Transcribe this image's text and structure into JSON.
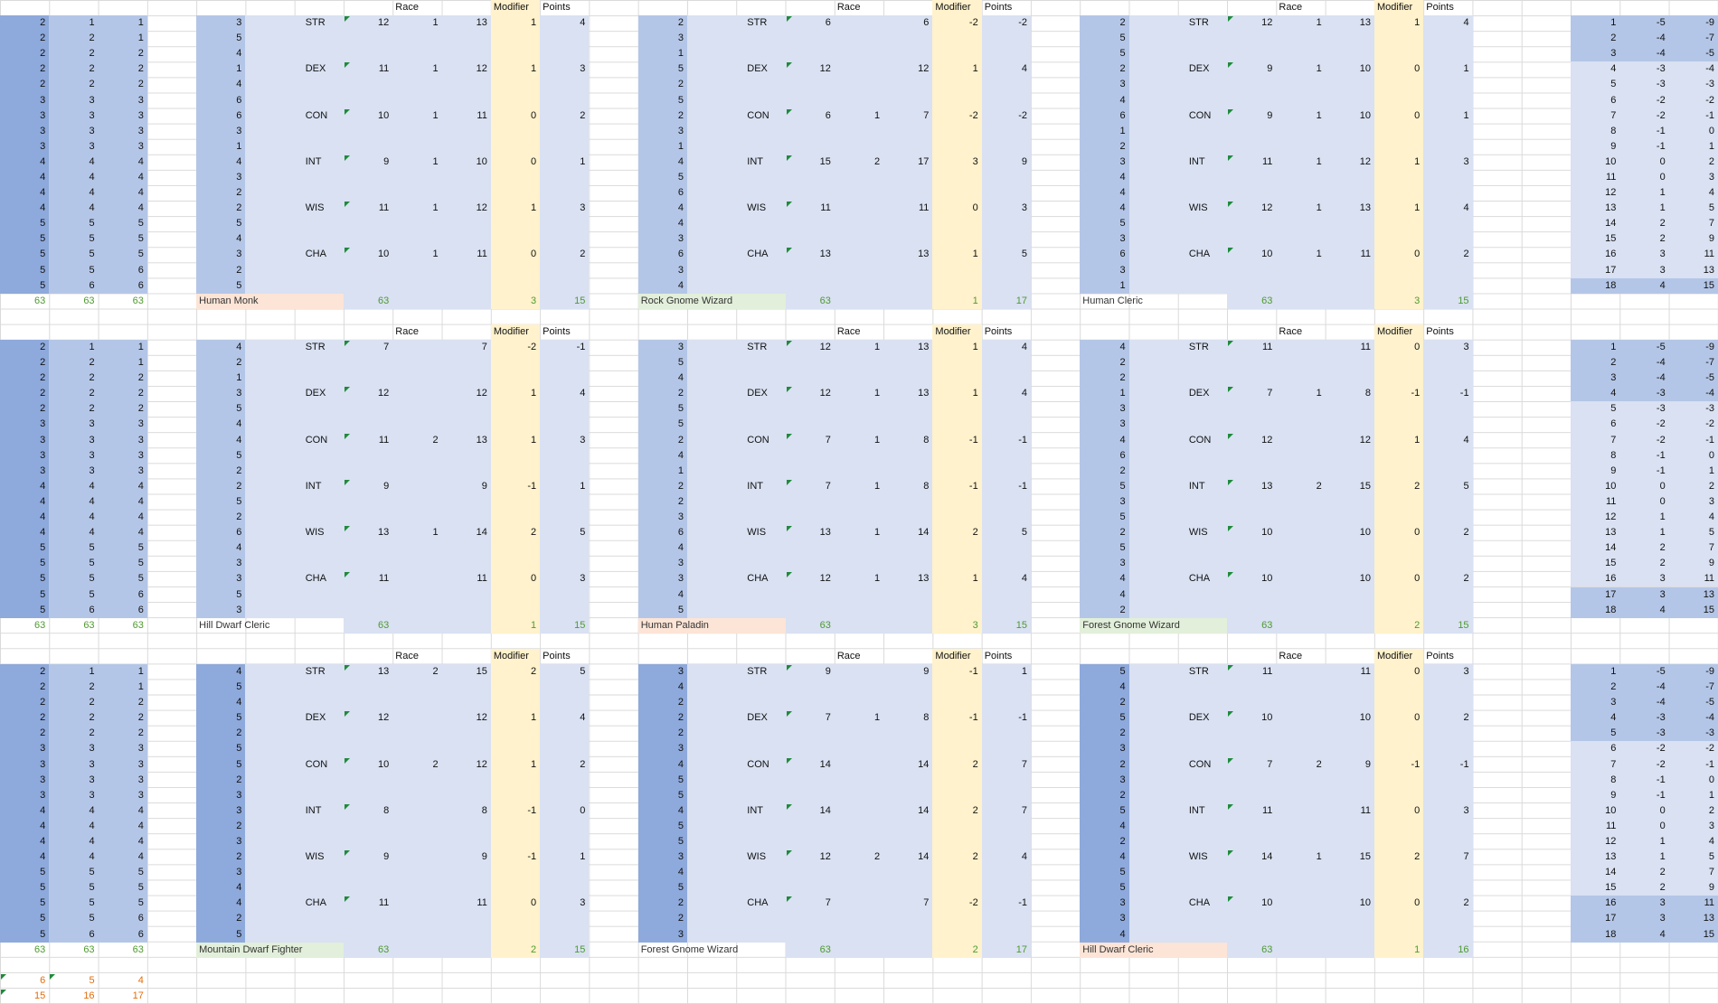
{
  "dice_groups": [
    {
      "columns": [
        [
          2,
          2,
          2,
          2,
          2,
          3,
          3,
          3,
          3,
          4,
          4,
          4,
          4,
          5,
          5,
          5,
          5,
          5
        ],
        [
          1,
          2,
          2,
          2,
          2,
          3,
          3,
          3,
          3,
          4,
          4,
          4,
          4,
          5,
          5,
          5,
          5,
          6
        ],
        [
          1,
          1,
          2,
          2,
          2,
          3,
          3,
          3,
          3,
          4,
          4,
          4,
          4,
          5,
          5,
          5,
          6,
          6
        ]
      ],
      "sums": [
        63,
        63,
        63
      ]
    },
    {
      "columns": [
        [
          2,
          2,
          2,
          2,
          2,
          3,
          3,
          3,
          3,
          4,
          4,
          4,
          4,
          5,
          5,
          5,
          5,
          5
        ],
        [
          1,
          2,
          2,
          2,
          2,
          3,
          3,
          3,
          3,
          4,
          4,
          4,
          4,
          5,
          5,
          5,
          5,
          6
        ],
        [
          1,
          1,
          2,
          2,
          2,
          3,
          3,
          3,
          3,
          4,
          4,
          4,
          4,
          5,
          5,
          5,
          6,
          6
        ]
      ],
      "sums": [
        63,
        63,
        63
      ]
    },
    {
      "columns": [
        [
          2,
          2,
          2,
          2,
          2,
          3,
          3,
          3,
          3,
          4,
          4,
          4,
          4,
          5,
          5,
          5,
          5,
          5
        ],
        [
          1,
          2,
          2,
          2,
          2,
          3,
          3,
          3,
          3,
          4,
          4,
          4,
          4,
          5,
          5,
          5,
          5,
          6
        ],
        [
          1,
          1,
          2,
          2,
          2,
          3,
          3,
          3,
          3,
          4,
          4,
          4,
          4,
          5,
          5,
          5,
          6,
          6
        ]
      ],
      "sums": [
        63,
        63,
        63
      ]
    }
  ],
  "extra_rows": [
    [
      6,
      5,
      4
    ],
    [
      15,
      16,
      17
    ]
  ],
  "blocks": [
    {
      "name": "Human Monk",
      "color": "#fce4d6",
      "rolls": [
        3,
        5,
        4,
        1,
        4,
        6,
        6,
        3,
        1,
        4,
        3,
        2,
        2,
        5,
        4,
        3,
        2,
        5
      ],
      "headers": [
        "Race",
        "Modifier",
        "Points"
      ],
      "stats": [
        {
          "ability": "STR",
          "base": 12,
          "race": 1,
          "total": 13,
          "modifier": 1,
          "points": 4
        },
        {
          "ability": "DEX",
          "base": 11,
          "race": 1,
          "total": 12,
          "modifier": 1,
          "points": 3
        },
        {
          "ability": "CON",
          "base": 10,
          "race": 1,
          "total": 11,
          "modifier": 0,
          "points": 2
        },
        {
          "ability": "INT",
          "base": 9,
          "race": 1,
          "total": 10,
          "modifier": 0,
          "points": 1
        },
        {
          "ability": "WIS",
          "base": 11,
          "race": 1,
          "total": 12,
          "modifier": 1,
          "points": 3
        },
        {
          "ability": "CHA",
          "base": 10,
          "race": 1,
          "total": 11,
          "modifier": 0,
          "points": 2
        }
      ],
      "sum_base": 63,
      "sum_modifier": 3,
      "sum_points": 15
    },
    {
      "name": "Rock Gnome Wizard",
      "color": "#e2efda",
      "rolls": [
        2,
        3,
        1,
        5,
        2,
        5,
        2,
        3,
        1,
        4,
        5,
        6,
        4,
        4,
        3,
        6,
        3,
        4
      ],
      "headers": [
        "Race",
        "Modifier",
        "Points"
      ],
      "stats": [
        {
          "ability": "STR",
          "base": 6,
          "race": null,
          "total": 6,
          "modifier": -2,
          "points": -2
        },
        {
          "ability": "DEX",
          "base": 12,
          "race": null,
          "total": 12,
          "modifier": 1,
          "points": 4
        },
        {
          "ability": "CON",
          "base": 6,
          "race": 1,
          "total": 7,
          "modifier": -2,
          "points": -2
        },
        {
          "ability": "INT",
          "base": 15,
          "race": 2,
          "total": 17,
          "modifier": 3,
          "points": 9
        },
        {
          "ability": "WIS",
          "base": 11,
          "race": null,
          "total": 11,
          "modifier": 0,
          "points": 3
        },
        {
          "ability": "CHA",
          "base": 13,
          "race": null,
          "total": 13,
          "modifier": 1,
          "points": 5
        }
      ],
      "sum_base": 63,
      "sum_modifier": 1,
      "sum_points": 17
    },
    {
      "name": "Human Cleric",
      "rolls": [
        2,
        5,
        5,
        2,
        3,
        4,
        6,
        1,
        2,
        3,
        4,
        4,
        4,
        5,
        3,
        6,
        3,
        1
      ],
      "headers": [
        "Race",
        "Modifier",
        "Points"
      ],
      "stats": [
        {
          "ability": "STR",
          "base": 12,
          "race": 1,
          "total": 13,
          "modifier": 1,
          "points": 4
        },
        {
          "ability": "DEX",
          "base": 9,
          "race": 1,
          "total": 10,
          "modifier": 0,
          "points": 1
        },
        {
          "ability": "CON",
          "base": 9,
          "race": 1,
          "total": 10,
          "modifier": 0,
          "points": 1
        },
        {
          "ability": "INT",
          "base": 11,
          "race": 1,
          "total": 12,
          "modifier": 1,
          "points": 3
        },
        {
          "ability": "WIS",
          "base": 12,
          "race": 1,
          "total": 13,
          "modifier": 1,
          "points": 4
        },
        {
          "ability": "CHA",
          "base": 10,
          "race": 1,
          "total": 11,
          "modifier": 0,
          "points": 2
        }
      ],
      "sum_base": 63,
      "sum_modifier": 3,
      "sum_points": 15
    },
    {
      "name": "Hill Dwarf Cleric",
      "rolls": [
        4,
        2,
        1,
        3,
        5,
        4,
        4,
        5,
        2,
        2,
        5,
        2,
        6,
        4,
        3,
        3,
        5,
        3
      ],
      "headers": [
        "Race",
        "Modifier",
        "Points"
      ],
      "stats": [
        {
          "ability": "STR",
          "base": 7,
          "race": null,
          "total": 7,
          "modifier": -2,
          "points": -1
        },
        {
          "ability": "DEX",
          "base": 12,
          "race": null,
          "total": 12,
          "modifier": 1,
          "points": 4
        },
        {
          "ability": "CON",
          "base": 11,
          "race": 2,
          "total": 13,
          "modifier": 1,
          "points": 3
        },
        {
          "ability": "INT",
          "base": 9,
          "race": null,
          "total": 9,
          "modifier": -1,
          "points": 1
        },
        {
          "ability": "WIS",
          "base": 13,
          "race": 1,
          "total": 14,
          "modifier": 2,
          "points": 5
        },
        {
          "ability": "CHA",
          "base": 11,
          "race": null,
          "total": 11,
          "modifier": 0,
          "points": 3
        }
      ],
      "sum_base": 63,
      "sum_modifier": 1,
      "sum_points": 15
    },
    {
      "name": "Human Paladin",
      "color": "#fce4d6",
      "rolls": [
        3,
        5,
        4,
        2,
        5,
        5,
        2,
        4,
        1,
        2,
        2,
        3,
        6,
        4,
        3,
        3,
        4,
        5
      ],
      "headers": [
        "Race",
        "Modifier",
        "Points"
      ],
      "stats": [
        {
          "ability": "STR",
          "base": 12,
          "race": 1,
          "total": 13,
          "modifier": 1,
          "points": 4
        },
        {
          "ability": "DEX",
          "base": 12,
          "race": 1,
          "total": 13,
          "modifier": 1,
          "points": 4
        },
        {
          "ability": "CON",
          "base": 7,
          "race": 1,
          "total": 8,
          "modifier": -1,
          "points": -1
        },
        {
          "ability": "INT",
          "base": 7,
          "race": 1,
          "total": 8,
          "modifier": -1,
          "points": -1
        },
        {
          "ability": "WIS",
          "base": 13,
          "race": 1,
          "total": 14,
          "modifier": 2,
          "points": 5
        },
        {
          "ability": "CHA",
          "base": 12,
          "race": 1,
          "total": 13,
          "modifier": 1,
          "points": 4
        }
      ],
      "sum_base": 63,
      "sum_modifier": 3,
      "sum_points": 15
    },
    {
      "name": "Forest Gnome Wizard",
      "color": "#e2efda",
      "rolls": [
        4,
        2,
        2,
        1,
        3,
        3,
        4,
        6,
        2,
        5,
        3,
        5,
        2,
        5,
        3,
        4,
        4,
        2
      ],
      "headers": [
        "Race",
        "Modifier",
        "Points"
      ],
      "stats": [
        {
          "ability": "STR",
          "base": 11,
          "race": null,
          "total": 11,
          "modifier": 0,
          "points": 3
        },
        {
          "ability": "DEX",
          "base": 7,
          "race": 1,
          "total": 8,
          "modifier": -1,
          "points": -1
        },
        {
          "ability": "CON",
          "base": 12,
          "race": null,
          "total": 12,
          "modifier": 1,
          "points": 4
        },
        {
          "ability": "INT",
          "base": 13,
          "race": 2,
          "total": 15,
          "modifier": 2,
          "points": 5
        },
        {
          "ability": "WIS",
          "base": 10,
          "race": null,
          "total": 10,
          "modifier": 0,
          "points": 2
        },
        {
          "ability": "CHA",
          "base": 10,
          "race": null,
          "total": 10,
          "modifier": 0,
          "points": 2
        }
      ],
      "sum_base": 63,
      "sum_modifier": 2,
      "sum_points": 15
    },
    {
      "name": "Mountain Dwarf Fighter",
      "color": "#e2efda",
      "rolls": [
        4,
        5,
        4,
        5,
        2,
        5,
        5,
        2,
        3,
        3,
        2,
        3,
        2,
        3,
        4,
        4,
        2,
        5
      ],
      "headers": [
        "Race",
        "Modifier",
        "Points"
      ],
      "stats": [
        {
          "ability": "STR",
          "base": 13,
          "race": 2,
          "total": 15,
          "modifier": 2,
          "points": 5
        },
        {
          "ability": "DEX",
          "base": 12,
          "race": null,
          "total": 12,
          "modifier": 1,
          "points": 4
        },
        {
          "ability": "CON",
          "base": 10,
          "race": 2,
          "total": 12,
          "modifier": 1,
          "points": 2
        },
        {
          "ability": "INT",
          "base": 8,
          "race": null,
          "total": 8,
          "modifier": -1,
          "points": 0
        },
        {
          "ability": "WIS",
          "base": 9,
          "race": null,
          "total": 9,
          "modifier": -1,
          "points": 1
        },
        {
          "ability": "CHA",
          "base": 11,
          "race": null,
          "total": 11,
          "modifier": 0,
          "points": 3
        }
      ],
      "sum_base": 63,
      "sum_modifier": 2,
      "sum_points": 15
    },
    {
      "name": "Forest Gnome Wizard",
      "rolls": [
        3,
        4,
        2,
        2,
        2,
        3,
        4,
        5,
        5,
        4,
        5,
        5,
        3,
        4,
        5,
        2,
        2,
        3
      ],
      "headers": [
        "Race",
        "Modifier",
        "Points"
      ],
      "stats": [
        {
          "ability": "STR",
          "base": 9,
          "race": null,
          "total": 9,
          "modifier": -1,
          "points": 1
        },
        {
          "ability": "DEX",
          "base": 7,
          "race": 1,
          "total": 8,
          "modifier": -1,
          "points": -1
        },
        {
          "ability": "CON",
          "base": 14,
          "race": null,
          "total": 14,
          "modifier": 2,
          "points": 7
        },
        {
          "ability": "INT",
          "base": 14,
          "race": null,
          "total": 14,
          "modifier": 2,
          "points": 7
        },
        {
          "ability": "WIS",
          "base": 12,
          "race": 2,
          "total": 14,
          "modifier": 2,
          "points": 4
        },
        {
          "ability": "CHA",
          "base": 7,
          "race": null,
          "total": 7,
          "modifier": -2,
          "points": -1
        }
      ],
      "sum_base": 63,
      "sum_modifier": 2,
      "sum_points": 17
    },
    {
      "name": "Hill Dwarf Cleric",
      "color": "#fce4d6",
      "rolls": [
        5,
        4,
        2,
        5,
        2,
        3,
        2,
        3,
        2,
        5,
        4,
        2,
        4,
        5,
        5,
        3,
        3,
        4
      ],
      "headers": [
        "Race",
        "Modifier",
        "Points"
      ],
      "stats": [
        {
          "ability": "STR",
          "base": 11,
          "race": null,
          "total": 11,
          "modifier": 0,
          "points": 3
        },
        {
          "ability": "DEX",
          "base": 10,
          "race": null,
          "total": 10,
          "modifier": 0,
          "points": 2
        },
        {
          "ability": "CON",
          "base": 7,
          "race": 2,
          "total": 9,
          "modifier": -1,
          "points": -1
        },
        {
          "ability": "INT",
          "base": 11,
          "race": null,
          "total": 11,
          "modifier": 0,
          "points": 3
        },
        {
          "ability": "WIS",
          "base": 14,
          "race": 1,
          "total": 15,
          "modifier": 2,
          "points": 7
        },
        {
          "ability": "CHA",
          "base": 10,
          "race": null,
          "total": 10,
          "modifier": 0,
          "points": 2
        }
      ],
      "sum_base": 63,
      "sum_modifier": 1,
      "sum_points": 16
    }
  ],
  "lookup_tables": [
    {
      "rows": [
        [
          1,
          -5,
          -9
        ],
        [
          2,
          -4,
          -7
        ],
        [
          3,
          -4,
          -5
        ],
        [
          4,
          -3,
          -4
        ],
        [
          5,
          -3,
          -3
        ],
        [
          6,
          -2,
          -2
        ],
        [
          7,
          -2,
          -1
        ],
        [
          8,
          -1,
          0
        ],
        [
          9,
          -1,
          1
        ],
        [
          10,
          0,
          2
        ],
        [
          11,
          0,
          3
        ],
        [
          12,
          1,
          4
        ],
        [
          13,
          1,
          5
        ],
        [
          14,
          2,
          7
        ],
        [
          15,
          2,
          9
        ],
        [
          16,
          3,
          11
        ],
        [
          17,
          3,
          13
        ],
        [
          18,
          4,
          15
        ]
      ]
    },
    {
      "rows": [
        [
          1,
          -5,
          -9
        ],
        [
          2,
          -4,
          -7
        ],
        [
          3,
          -4,
          -5
        ],
        [
          4,
          -3,
          -4
        ],
        [
          5,
          -3,
          -3
        ],
        [
          6,
          -2,
          -2
        ],
        [
          7,
          -2,
          -1
        ],
        [
          8,
          -1,
          0
        ],
        [
          9,
          -1,
          1
        ],
        [
          10,
          0,
          2
        ],
        [
          11,
          0,
          3
        ],
        [
          12,
          1,
          4
        ],
        [
          13,
          1,
          5
        ],
        [
          14,
          2,
          7
        ],
        [
          15,
          2,
          9
        ],
        [
          16,
          3,
          11
        ],
        [
          17,
          3,
          13
        ],
        [
          18,
          4,
          15
        ]
      ]
    },
    {
      "rows": [
        [
          1,
          -5,
          -9
        ],
        [
          2,
          -4,
          -7
        ],
        [
          3,
          -4,
          -5
        ],
        [
          4,
          -3,
          -4
        ],
        [
          5,
          -3,
          -3
        ],
        [
          6,
          -2,
          -2
        ],
        [
          7,
          -2,
          -1
        ],
        [
          8,
          -1,
          0
        ],
        [
          9,
          -1,
          1
        ],
        [
          10,
          0,
          2
        ],
        [
          11,
          0,
          3
        ],
        [
          12,
          1,
          4
        ],
        [
          13,
          1,
          5
        ],
        [
          14,
          2,
          7
        ],
        [
          15,
          2,
          9
        ],
        [
          16,
          3,
          11
        ],
        [
          17,
          3,
          13
        ],
        [
          18,
          4,
          15
        ]
      ]
    }
  ]
}
